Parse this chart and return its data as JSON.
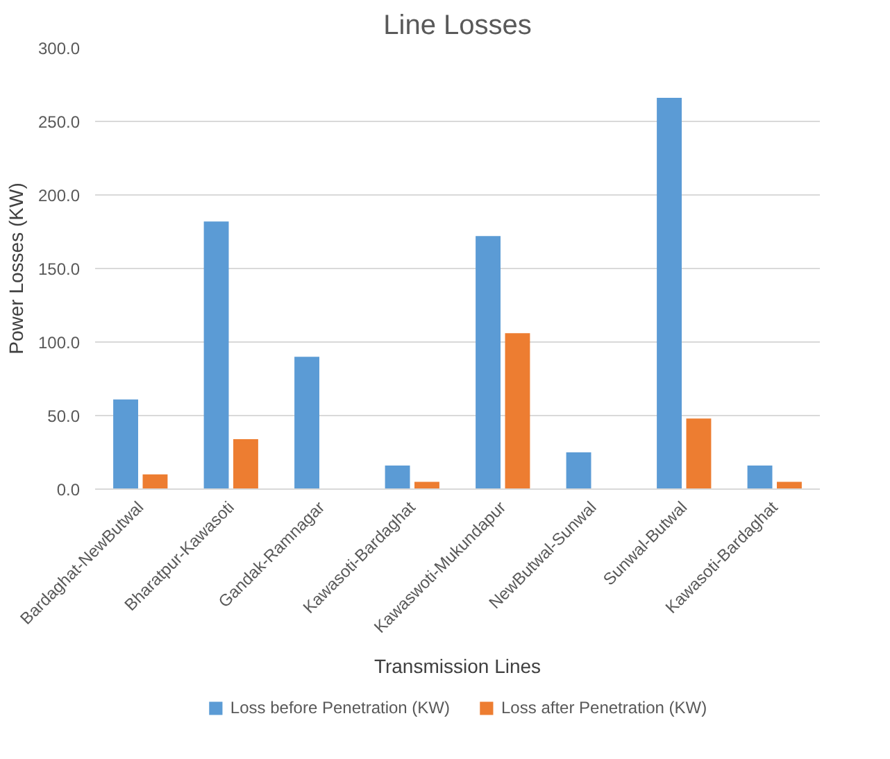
{
  "chart_data": {
    "type": "bar",
    "title": "Line Losses",
    "xlabel": "Transmission Lines",
    "ylabel": "Power Losses (KW)",
    "categories": [
      "Bardaghat-NewButwal",
      "Bharatpur-Kawasoti",
      "Gandak-Ramnagar",
      "Kawasoti-Bardaghat",
      "Kawaswoti-Mukundapur",
      "NewButwal-Sunwal",
      "Sunwal-Butwal",
      "Kawasoti-Bardaghat"
    ],
    "series": [
      {
        "name": "Loss before Penetration (KW)",
        "color": "#5b9bd5",
        "values": [
          61,
          182,
          90,
          16,
          172,
          25,
          266,
          16
        ]
      },
      {
        "name": "Loss after Penetration (KW)",
        "color": "#ed7d31",
        "values": [
          10,
          34,
          0,
          5,
          106,
          0,
          48,
          5
        ]
      }
    ],
    "ylim": [
      0,
      300
    ],
    "yticks": [
      {
        "value": 0,
        "label": "0.0"
      },
      {
        "value": 50,
        "label": "50.0"
      },
      {
        "value": 100,
        "label": "100.0"
      },
      {
        "value": 150,
        "label": "150.0"
      },
      {
        "value": 200,
        "label": "200.0"
      },
      {
        "value": 250,
        "label": "250.0"
      },
      {
        "value": 300,
        "label": "300.0"
      }
    ],
    "grid": "y",
    "legend": "bottom"
  }
}
